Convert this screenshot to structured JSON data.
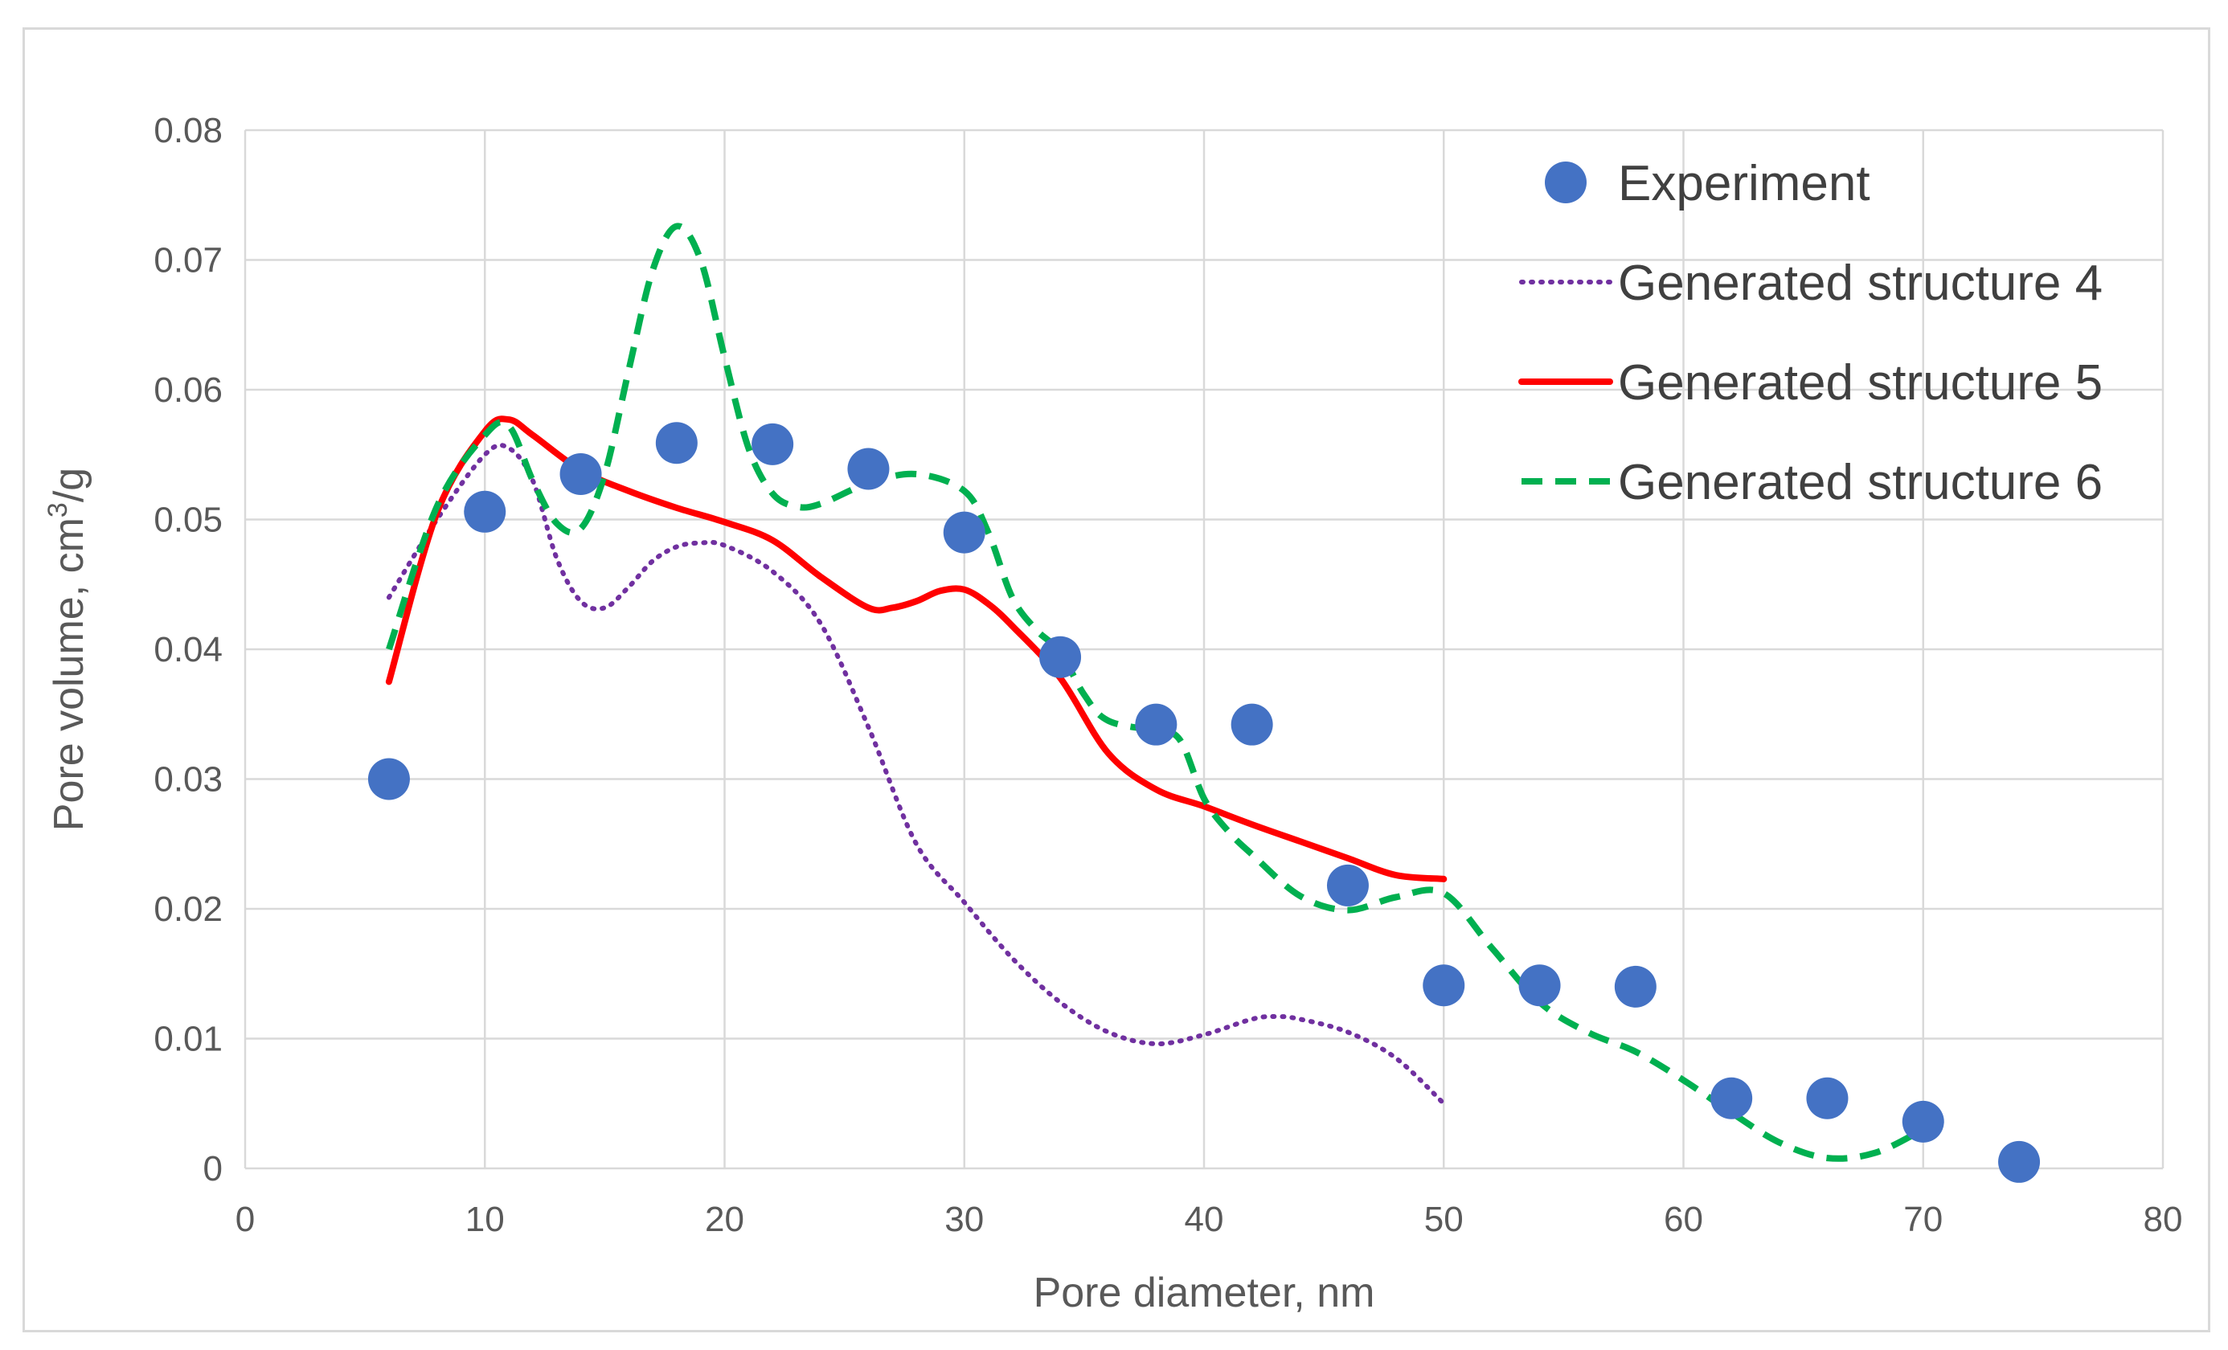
{
  "chart_data": {
    "type": "line",
    "title": "",
    "xlabel": "Pore diameter, nm",
    "ylabel_main": "Pore volume, cm",
    "ylabel_sup": "3",
    "ylabel_tail": "/g",
    "xlim": [
      0,
      80
    ],
    "ylim": [
      0,
      0.08
    ],
    "xticks": [
      0,
      10,
      20,
      30,
      40,
      50,
      60,
      70,
      80
    ],
    "xtick_labels": [
      "0",
      "10",
      "20",
      "30",
      "40",
      "50",
      "60",
      "70",
      "80"
    ],
    "yticks": [
      0,
      0.01,
      0.02,
      0.03,
      0.04,
      0.05,
      0.06,
      0.07,
      0.08
    ],
    "ytick_labels": [
      "0",
      "0.01",
      "0.02",
      "0.03",
      "0.04",
      "0.05",
      "0.06",
      "0.07",
      "0.08"
    ],
    "grid": true,
    "legend_position": "top-right",
    "series": [
      {
        "name": "Experiment",
        "style": "markers",
        "color": "#4472c4",
        "x": [
          6,
          10,
          14,
          18,
          22,
          26,
          30,
          34,
          38,
          42,
          46,
          50,
          54,
          58,
          62,
          66,
          70,
          74
        ],
        "y": [
          0.03,
          0.0506,
          0.0535,
          0.0559,
          0.0558,
          0.0539,
          0.049,
          0.0394,
          0.0342,
          0.0342,
          0.0218,
          0.0141,
          0.0141,
          0.014,
          0.0054,
          0.0054,
          0.0036,
          0.0005
        ]
      },
      {
        "name": "Generated structure 4",
        "style": "dotted",
        "color": "#7030a0",
        "x": [
          6,
          8,
          10,
          11,
          12,
          13,
          14,
          15,
          16,
          17,
          18,
          19,
          20,
          22,
          24,
          26,
          28,
          30,
          32,
          34,
          36,
          38,
          40,
          42,
          43,
          44,
          46,
          48,
          50
        ],
        "y": [
          0.044,
          0.05,
          0.055,
          0.0555,
          0.053,
          0.047,
          0.0437,
          0.0432,
          0.0448,
          0.0468,
          0.0479,
          0.0482,
          0.048,
          0.046,
          0.042,
          0.034,
          0.025,
          0.0205,
          0.0162,
          0.0128,
          0.0105,
          0.0096,
          0.0103,
          0.0115,
          0.0117,
          0.0115,
          0.0105,
          0.0085,
          0.005
        ]
      },
      {
        "name": "Generated structure 5",
        "style": "solid",
        "color": "#ff0000",
        "x": [
          6,
          8,
          10,
          11,
          12,
          14,
          16,
          18,
          20,
          22,
          24,
          26,
          27,
          28,
          29,
          30,
          31,
          32,
          34,
          36,
          38,
          40,
          42,
          44,
          46,
          48,
          50
        ],
        "y": [
          0.0375,
          0.0505,
          0.0568,
          0.0577,
          0.0565,
          0.0538,
          0.0522,
          0.0509,
          0.0498,
          0.0484,
          0.0456,
          0.0432,
          0.0432,
          0.0437,
          0.0445,
          0.0446,
          0.0435,
          0.0418,
          0.0378,
          0.032,
          0.0292,
          0.0279,
          0.0265,
          0.0252,
          0.0239,
          0.0226,
          0.0223
        ]
      },
      {
        "name": "Generated structure 6",
        "style": "dashed",
        "color": "#00b050",
        "x": [
          6,
          8,
          10,
          11,
          12,
          13,
          14,
          15,
          16,
          17,
          18,
          19,
          20,
          21,
          22,
          23,
          24,
          26,
          28,
          30,
          31,
          32,
          33,
          34,
          35,
          36,
          38,
          39,
          40,
          41,
          42,
          44,
          46,
          48,
          50,
          52,
          54,
          56,
          58,
          60,
          62,
          64,
          66,
          68,
          70
        ],
        "y": [
          0.04,
          0.051,
          0.0565,
          0.0572,
          0.053,
          0.0497,
          0.0493,
          0.0535,
          0.0615,
          0.0692,
          0.0726,
          0.07,
          0.0625,
          0.0555,
          0.052,
          0.051,
          0.0512,
          0.0528,
          0.0535,
          0.0522,
          0.049,
          0.044,
          0.0415,
          0.0398,
          0.0365,
          0.0345,
          0.0337,
          0.033,
          0.0285,
          0.026,
          0.0242,
          0.021,
          0.0199,
          0.0209,
          0.0212,
          0.017,
          0.0128,
          0.0105,
          0.009,
          0.0068,
          0.0043,
          0.002,
          0.0008,
          0.0012,
          0.003
        ]
      }
    ]
  }
}
